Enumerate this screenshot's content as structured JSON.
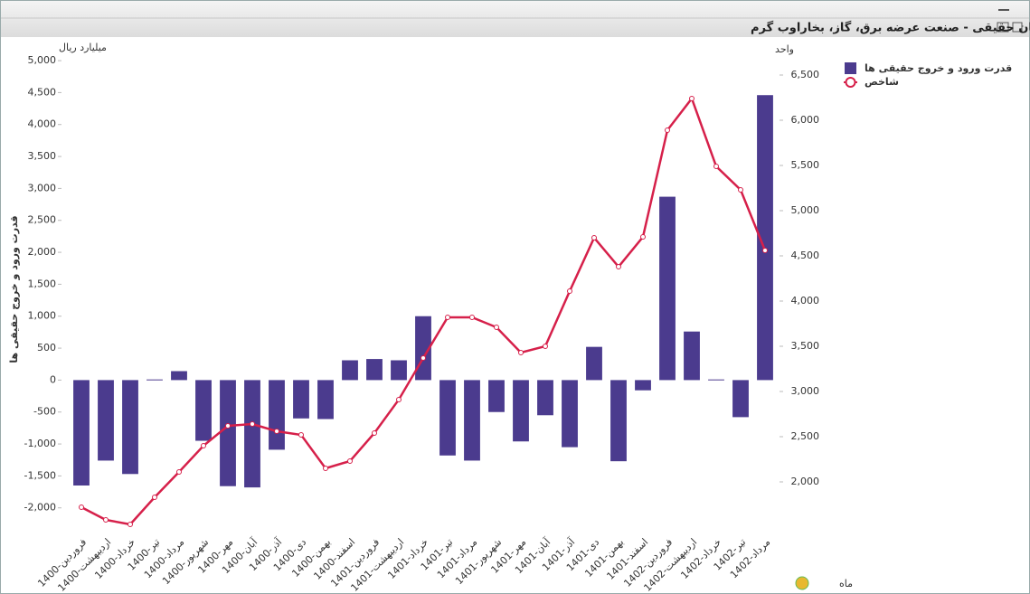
{
  "chart_data": {
    "type": "bar",
    "title": "نمودار خالص ورود (خروج) مشتریان حقیقی - صنعت عرضه برق، گاز، بخاراوب گرم",
    "ylabel": "قدرت ورود و خروج حقیقی ها",
    "yunit": "میلیارد ریال",
    "y2unit": "واحد",
    "xlabel": "ماه",
    "categories": [
      "1400-فروردین",
      "1400-اردیبهشت",
      "1400-خرداد",
      "1400-تیر",
      "1400-مرداد",
      "1400-شهریور",
      "1400-مهر",
      "1400-آبان",
      "1400-آذر",
      "1400-دی",
      "1400-بهمن",
      "1400-اسفند",
      "1401-فروردین",
      "1401-اردیبهشت",
      "1401-خرداد",
      "1401-تیر",
      "1401-مرداد",
      "1401-شهریور",
      "1401-مهر",
      "1401-آبان",
      "1401-آذر",
      "1401-دی",
      "1401-بهمن",
      "1401-اسفند",
      "1402-فروردین",
      "1402-اردیبهشت",
      "1402-خرداد",
      "1402-تیر",
      "1402-مرداد"
    ],
    "series": [
      {
        "name": "قدرت ورود و خروج حقیقی ها",
        "type": "bar",
        "color": "#4b3b8e",
        "values": [
          -1650,
          -1260,
          -1470,
          10,
          140,
          -950,
          -1660,
          -1680,
          -1090,
          -600,
          -610,
          310,
          330,
          310,
          1000,
          -1180,
          -1260,
          -500,
          -960,
          -550,
          -1050,
          520,
          -1270,
          -160,
          2870,
          760,
          10,
          -580,
          4460
        ]
      },
      {
        "name": "شاخص",
        "type": "line",
        "axis": "y2",
        "color": "#d6204a",
        "values": [
          1720,
          1580,
          1530,
          1830,
          2110,
          2400,
          2620,
          2640,
          2560,
          2520,
          2150,
          2230,
          2540,
          2910,
          3370,
          3820,
          3820,
          3710,
          3430,
          3500,
          4110,
          4700,
          4380,
          4710,
          5890,
          6240,
          5490,
          5230,
          4560
        ]
      }
    ],
    "ylim": [
      -2400,
      5100
    ],
    "yticks": [
      {
        "value": -2000,
        "label": "-2,000"
      },
      {
        "value": -1500,
        "label": "-1,500"
      },
      {
        "value": -1000,
        "label": "-1,000"
      },
      -500,
      0,
      500,
      {
        "value": 1000,
        "label": "1,000"
      },
      {
        "value": 1500,
        "label": "1,500"
      },
      {
        "value": 2000,
        "label": "2,000"
      },
      {
        "value": 2500,
        "label": "2,500"
      },
      {
        "value": 3000,
        "label": "3,000"
      },
      {
        "value": 3500,
        "label": "3,500"
      },
      {
        "value": 4000,
        "label": "4,000"
      },
      {
        "value": 4500,
        "label": "4,500"
      },
      {
        "value": 5000,
        "label": "5,000"
      }
    ],
    "y2lim": [
      1430,
      6730
    ],
    "y2ticks": [
      {
        "value": 2000,
        "label": "2,000"
      },
      {
        "value": 2500,
        "label": "2,500"
      },
      {
        "value": 3000,
        "label": "3,000"
      },
      {
        "value": 3500,
        "label": "3,500"
      },
      {
        "value": 4000,
        "label": "4,000"
      },
      {
        "value": 4500,
        "label": "4,500"
      },
      {
        "value": 5000,
        "label": "5,000"
      },
      {
        "value": 5500,
        "label": "5,500"
      },
      {
        "value": 6000,
        "label": "6,000"
      },
      {
        "value": 6500,
        "label": "6,500"
      }
    ],
    "grid": false
  }
}
